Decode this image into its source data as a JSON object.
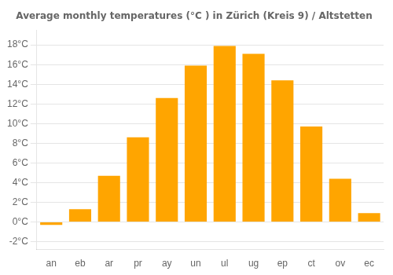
{
  "chart_data": {
    "type": "bar",
    "title": "Average monthly temperatures (°C ) in Zürich (Kreis 9) / Altstetten",
    "categories": [
      "an",
      "eb",
      "ar",
      "pr",
      "ay",
      "un",
      "ul",
      "ug",
      "ep",
      "ct",
      "ov",
      "ec"
    ],
    "values": [
      -0.3,
      1.3,
      4.7,
      8.6,
      12.6,
      15.9,
      17.9,
      17.1,
      14.4,
      9.7,
      4.4,
      0.9
    ],
    "color": "#FFA500",
    "ylim": [
      -2.8,
      19.5
    ],
    "yticks": [
      {
        "value": -2,
        "label": "-2°C"
      },
      {
        "value": 0,
        "label": "0°C"
      },
      {
        "value": 2,
        "label": "2°C"
      },
      {
        "value": 4,
        "label": "4°C"
      },
      {
        "value": 6,
        "label": "6°C"
      },
      {
        "value": 8,
        "label": "8°C"
      },
      {
        "value": 10,
        "label": "10°C"
      },
      {
        "value": 12,
        "label": "12°C"
      },
      {
        "value": 14,
        "label": "14°C"
      },
      {
        "value": 16,
        "label": "16°C"
      },
      {
        "value": 18,
        "label": "18°C"
      }
    ],
    "grid": true
  }
}
